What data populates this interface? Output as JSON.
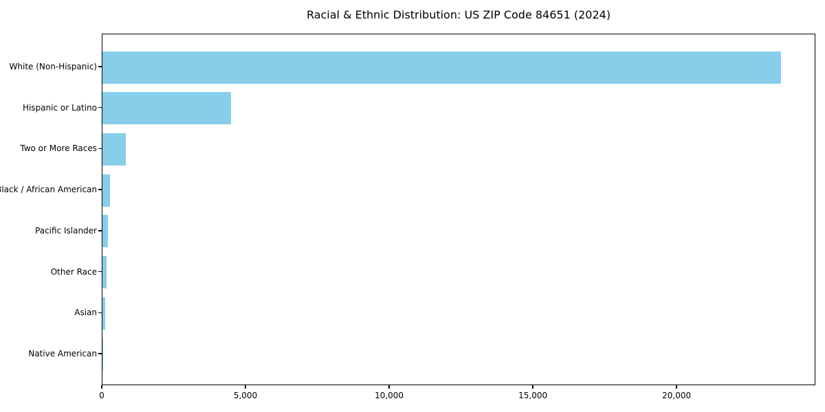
{
  "chart_data": {
    "type": "bar",
    "orientation": "horizontal",
    "title": "Racial & Ethnic Distribution: US ZIP Code 84651 (2024)",
    "categories": [
      "White (Non-Hispanic)",
      "Hispanic or Latino",
      "Two or More Races",
      "Black / African American",
      "Pacific Islander",
      "Other Race",
      "Asian",
      "Native American"
    ],
    "values": [
      23600,
      4480,
      820,
      270,
      190,
      145,
      95,
      12
    ],
    "xlabel": "",
    "ylabel": "",
    "xlim": [
      0,
      24780
    ],
    "xticks": [
      0,
      5000,
      10000,
      15000,
      20000
    ],
    "xtick_labels": [
      "0",
      "5,000",
      "10,000",
      "15,000",
      "20,000"
    ],
    "grid": false,
    "legend": null,
    "bar_color": "#87CEEB",
    "frame_color": "#000000",
    "text_color": "#000000",
    "background_color": "#ffffff"
  }
}
